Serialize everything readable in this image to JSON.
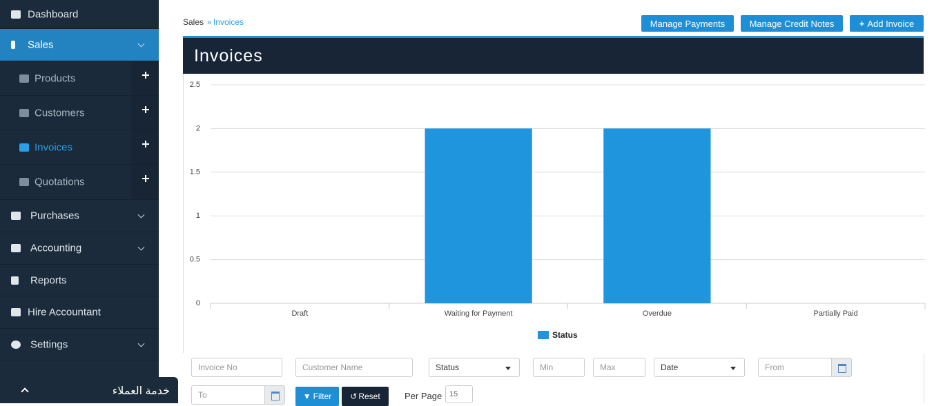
{
  "sidebar": {
    "items": [
      "Dashboard",
      "Sales",
      "Products",
      "Customers",
      "Invoices",
      "Quotations",
      "Purchases",
      "Accounting",
      "Reports",
      "Hire Accountant",
      "Settings"
    ],
    "support": "خدمة العملاء"
  },
  "breadcrumb": [
    "Sales",
    "Invoices"
  ],
  "buttons": [
    "Manage Payments",
    "Manage Credit Notes",
    "Add Invoice"
  ],
  "panel": {
    "title": "Invoices"
  },
  "chart_data": {
    "type": "bar",
    "categories": [
      "Draft",
      "Waiting for Payment",
      "Overdue",
      "Partially Paid"
    ],
    "series": [
      {
        "name": "Status",
        "color": "#1e95dd",
        "values": [
          0,
          2,
          2,
          0
        ]
      }
    ],
    "ylim": [
      0,
      2.5
    ],
    "yticks": [
      0,
      0.5,
      1,
      1.5,
      2,
      2.5
    ],
    "grid": true,
    "legend": "bottom"
  },
  "filters": {
    "invoice_no": "Invoice No",
    "customer_name": "Customer Name",
    "status": "Status",
    "min": "Min",
    "max": "Max",
    "date": "Date",
    "from": "From",
    "to": "To",
    "filter": "Filter",
    "reset": "Reset",
    "per_page": "Per Page",
    "per_page_value": "15"
  }
}
